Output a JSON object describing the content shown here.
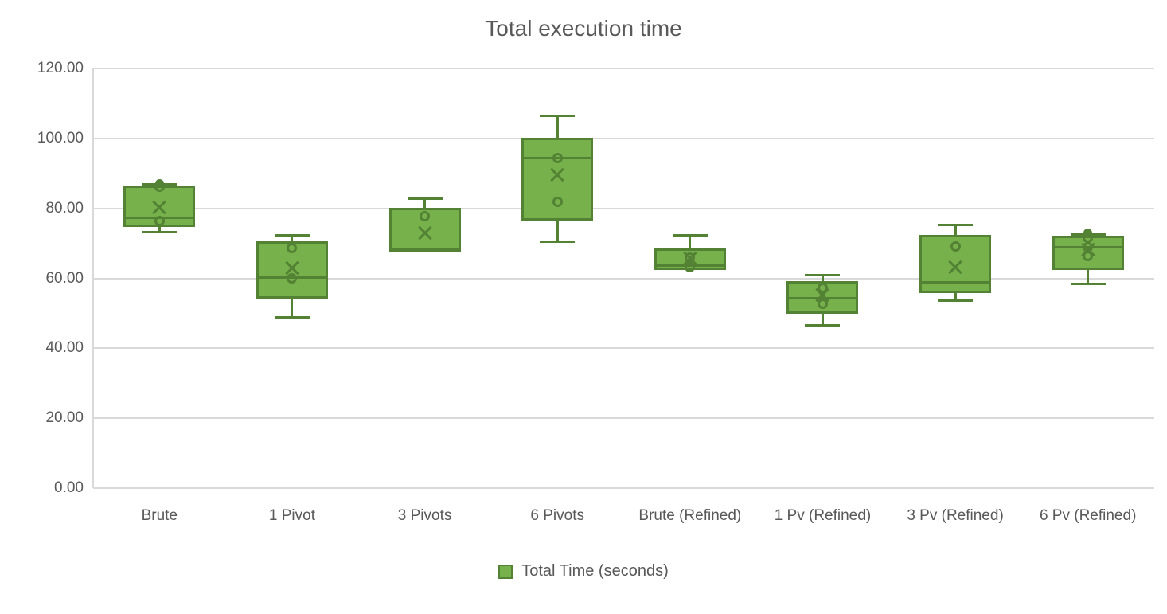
{
  "chart_data": {
    "type": "boxplot",
    "title": "Total execution time",
    "xlabel": "",
    "ylabel": "",
    "ylim": [
      0,
      120
    ],
    "y_tick_step": 20,
    "y_tick_labels": [
      "0.00",
      "20.00",
      "40.00",
      "60.00",
      "80.00",
      "100.00",
      "120.00"
    ],
    "grid": true,
    "legend_position": "bottom",
    "legend_label": "Total Time (seconds)",
    "categories": [
      "Brute",
      "1 Pivot",
      "3 Pivots",
      "6 Pivots",
      "Brute (Refined)",
      "1 Pv (Refined)",
      "3 Pv (Refined)",
      "6 Pv (Refined)"
    ],
    "series": [
      {
        "name": "Total Time (seconds)",
        "boxes": [
          {
            "category": "Brute",
            "whisker_low": 73.3,
            "q1": 74.7,
            "median": 77.3,
            "q3": 86.5,
            "whisker_high": 86.9,
            "mean": 80.3,
            "open_points": [
              86.2,
              76.5
            ],
            "filled_points": [
              87.1
            ]
          },
          {
            "category": "1 Pivot",
            "whisker_low": 48.9,
            "q1": 54.2,
            "median": 60.3,
            "q3": 70.5,
            "whisker_high": 72.4,
            "mean": 63.0,
            "open_points": [
              68.6,
              59.9
            ],
            "filled_points": []
          },
          {
            "category": "3 Pivots",
            "whisker_low": 67.3,
            "q1": 67.3,
            "median": 68.4,
            "q3": 80.2,
            "whisker_high": 82.7,
            "mean": 73.0,
            "open_points": [
              77.7
            ],
            "filled_points": []
          },
          {
            "category": "6 Pivots",
            "whisker_low": 70.5,
            "q1": 76.6,
            "median": 94.3,
            "q3": 100.3,
            "whisker_high": 106.4,
            "mean": 89.7,
            "open_points": [
              94.4,
              81.9
            ],
            "filled_points": []
          },
          {
            "category": "Brute (Refined)",
            "whisker_low": 62.3,
            "q1": 62.3,
            "median": 63.7,
            "q3": 68.6,
            "whisker_high": 72.2,
            "mean": 65.8,
            "open_points": [
              66.0,
              63.2
            ],
            "filled_points": []
          },
          {
            "category": "1 Pv (Refined)",
            "whisker_low": 46.6,
            "q1": 49.9,
            "median": 54.4,
            "q3": 59.1,
            "whisker_high": 61.0,
            "mean": 55.3,
            "open_points": [
              57.2,
              52.7
            ],
            "filled_points": []
          },
          {
            "category": "3 Pv (Refined)",
            "whisker_low": 53.7,
            "q1": 55.7,
            "median": 58.8,
            "q3": 72.4,
            "whisker_high": 75.2,
            "mean": 63.3,
            "open_points": [
              69.0
            ],
            "filled_points": []
          },
          {
            "category": "6 Pv (Refined)",
            "whisker_low": 58.5,
            "q1": 62.5,
            "median": 68.9,
            "q3": 72.2,
            "whisker_high": 72.6,
            "mean": 68.3,
            "open_points": [
              71.6,
              68.9,
              66.4
            ],
            "filled_points": [
              73.0
            ]
          }
        ]
      }
    ],
    "colors": {
      "box_fill": "#76b14b",
      "box_border": "#548235",
      "marker": "#548235",
      "gridline": "#d9d9d9",
      "axis_line": "#d9d9d9",
      "text": "#595959",
      "background": "#ffffff"
    }
  }
}
